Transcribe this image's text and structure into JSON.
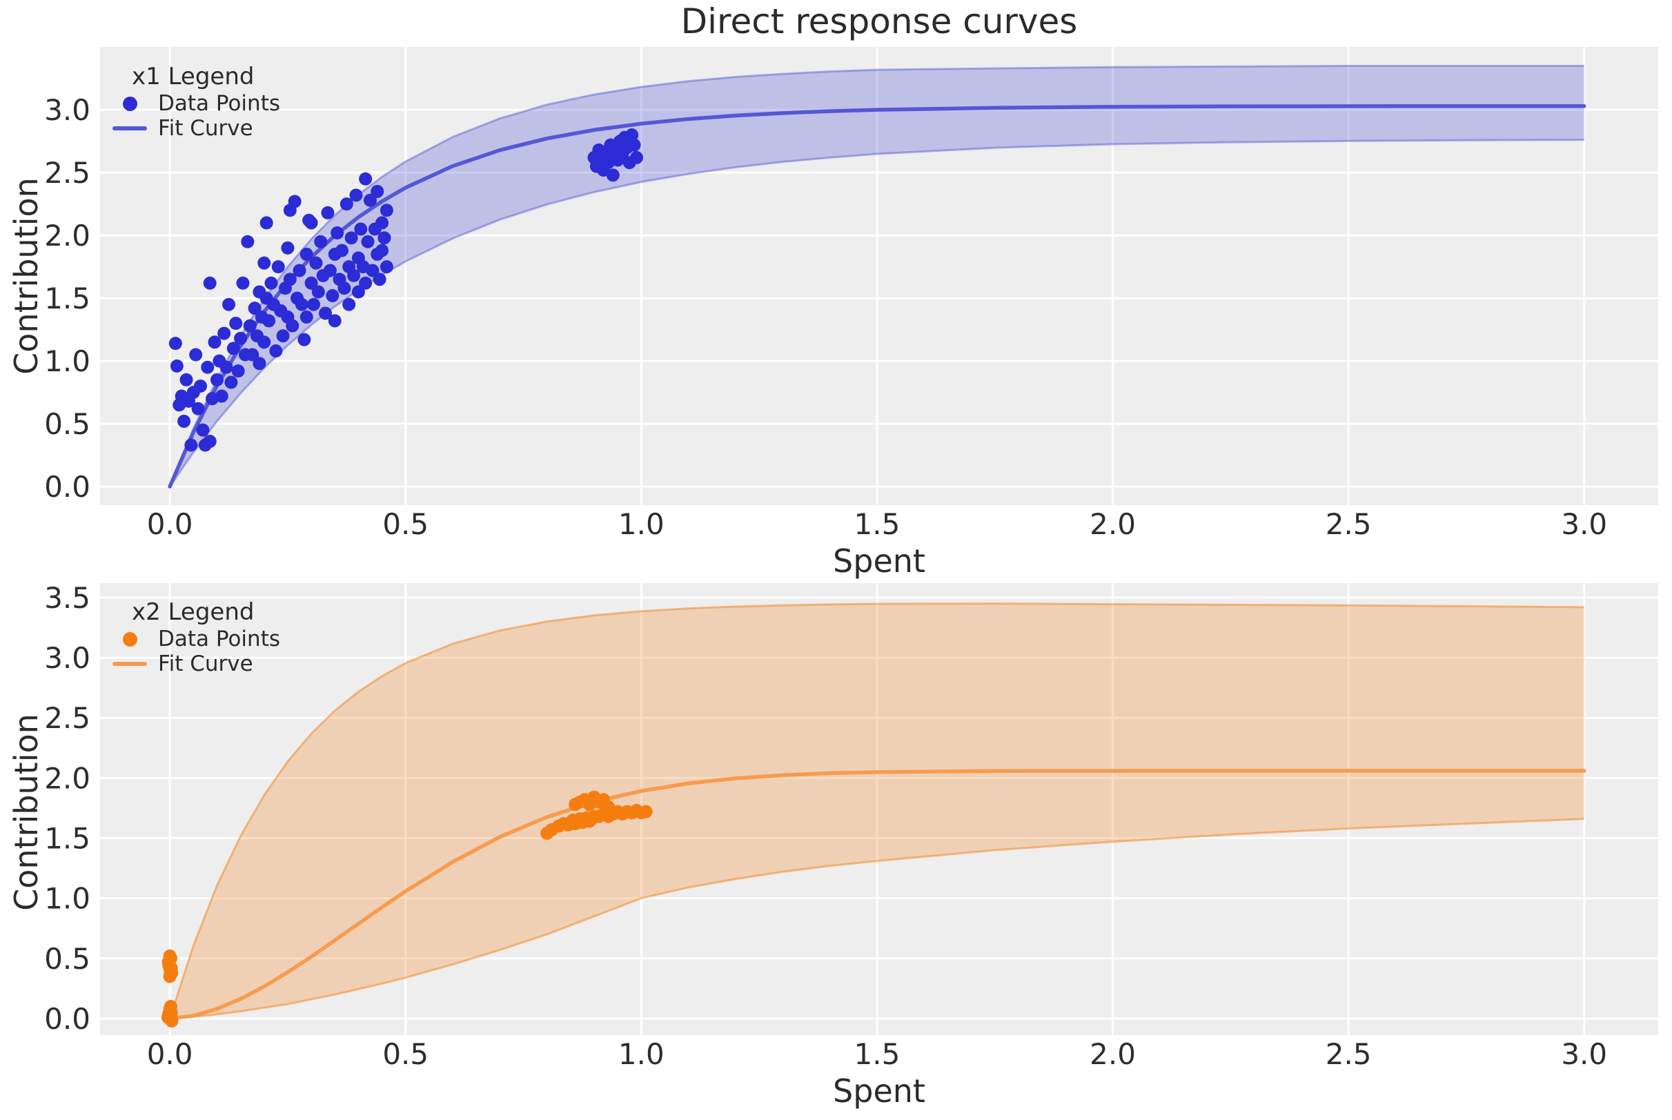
{
  "figure": {
    "title": "Direct response curves",
    "styles": {
      "background": "#ffffff",
      "plot_background": "#eeeeee",
      "grid_color": "#ffffff",
      "text_color": "#2d2d2d"
    }
  },
  "chart_data": [
    {
      "type": "scatter",
      "name": "x1",
      "xlabel": "Spent",
      "ylabel": "Contribution",
      "xlim": [
        -0.148,
        3.157
      ],
      "ylim": [
        -0.148,
        3.501
      ],
      "xticks": [
        0,
        0.5,
        1.0,
        1.5,
        2.0,
        2.5,
        3.0
      ],
      "xtick_labels": [
        "0.0",
        "0.5",
        "1.0",
        "1.5",
        "2.0",
        "2.5",
        "3.0"
      ],
      "yticks": [
        0,
        0.5,
        1.0,
        1.5,
        2.0,
        2.5,
        3.0
      ],
      "ytick_labels": [
        "0.0",
        "0.5",
        "1.0",
        "1.5",
        "2.0",
        "2.5",
        "3.0"
      ],
      "grid": true,
      "legend": {
        "title": "x1 Legend",
        "position": "upper left",
        "entries": [
          {
            "label": "Data Points",
            "type": "marker"
          },
          {
            "label": "Fit Curve",
            "type": "line"
          }
        ]
      },
      "colors": {
        "points": "#2b2cd5",
        "line": "#5457d6",
        "band_fill": "rgba(93,95,214,0.32)",
        "band_edge": "rgba(93,95,214,0.5)"
      },
      "points": [
        [
          0.012,
          1.14
        ],
        [
          0.015,
          0.96
        ],
        [
          0.02,
          0.65
        ],
        [
          0.025,
          0.72
        ],
        [
          0.03,
          0.52
        ],
        [
          0.035,
          0.85
        ],
        [
          0.04,
          0.68
        ],
        [
          0.045,
          0.33
        ],
        [
          0.05,
          0.75
        ],
        [
          0.055,
          1.05
        ],
        [
          0.06,
          0.62
        ],
        [
          0.065,
          0.8
        ],
        [
          0.07,
          0.45
        ],
        [
          0.075,
          0.33
        ],
        [
          0.085,
          0.36
        ],
        [
          0.08,
          0.95
        ],
        [
          0.085,
          1.62
        ],
        [
          0.09,
          0.7
        ],
        [
          0.095,
          1.15
        ],
        [
          0.1,
          0.85
        ],
        [
          0.105,
          1.0
        ],
        [
          0.11,
          0.72
        ],
        [
          0.115,
          1.22
        ],
        [
          0.12,
          0.95
        ],
        [
          0.125,
          1.45
        ],
        [
          0.13,
          0.83
        ],
        [
          0.135,
          1.1
        ],
        [
          0.14,
          1.3
        ],
        [
          0.145,
          0.92
        ],
        [
          0.15,
          1.18
        ],
        [
          0.155,
          1.62
        ],
        [
          0.16,
          1.05
        ],
        [
          0.165,
          1.95
        ],
        [
          0.17,
          1.28
        ],
        [
          0.175,
          1.05
        ],
        [
          0.18,
          1.42
        ],
        [
          0.185,
          1.2
        ],
        [
          0.19,
          0.98
        ],
        [
          0.19,
          1.55
        ],
        [
          0.195,
          1.35
        ],
        [
          0.2,
          1.15
        ],
        [
          0.2,
          1.78
        ],
        [
          0.205,
          2.1
        ],
        [
          0.205,
          1.5
        ],
        [
          0.21,
          1.32
        ],
        [
          0.215,
          1.62
        ],
        [
          0.22,
          1.45
        ],
        [
          0.225,
          1.08
        ],
        [
          0.23,
          1.75
        ],
        [
          0.235,
          1.4
        ],
        [
          0.24,
          1.2
        ],
        [
          0.245,
          1.58
        ],
        [
          0.25,
          1.35
        ],
        [
          0.25,
          1.9
        ],
        [
          0.255,
          2.2
        ],
        [
          0.255,
          1.65
        ],
        [
          0.26,
          1.28
        ],
        [
          0.265,
          2.27
        ],
        [
          0.27,
          1.5
        ],
        [
          0.275,
          1.72
        ],
        [
          0.28,
          1.45
        ],
        [
          0.285,
          1.17
        ],
        [
          0.29,
          1.85
        ],
        [
          0.29,
          1.35
        ],
        [
          0.295,
          2.12
        ],
        [
          0.3,
          1.62
        ],
        [
          0.3,
          2.1
        ],
        [
          0.305,
          1.45
        ],
        [
          0.31,
          1.78
        ],
        [
          0.315,
          1.55
        ],
        [
          0.32,
          1.95
        ],
        [
          0.325,
          1.68
        ],
        [
          0.33,
          1.38
        ],
        [
          0.335,
          2.18
        ],
        [
          0.34,
          1.72
        ],
        [
          0.345,
          1.52
        ],
        [
          0.35,
          1.85
        ],
        [
          0.35,
          1.32
        ],
        [
          0.355,
          2.02
        ],
        [
          0.36,
          1.65
        ],
        [
          0.365,
          1.88
        ],
        [
          0.37,
          1.58
        ],
        [
          0.375,
          2.25
        ],
        [
          0.38,
          1.75
        ],
        [
          0.38,
          1.45
        ],
        [
          0.385,
          1.98
        ],
        [
          0.39,
          1.68
        ],
        [
          0.395,
          2.32
        ],
        [
          0.4,
          1.82
        ],
        [
          0.4,
          1.55
        ],
        [
          0.405,
          2.05
        ],
        [
          0.41,
          1.75
        ],
        [
          0.415,
          2.45
        ],
        [
          0.415,
          1.62
        ],
        [
          0.42,
          1.95
        ],
        [
          0.425,
          2.28
        ],
        [
          0.43,
          1.72
        ],
        [
          0.435,
          2.05
        ],
        [
          0.44,
          1.85
        ],
        [
          0.44,
          2.35
        ],
        [
          0.445,
          1.65
        ],
        [
          0.45,
          2.1
        ],
        [
          0.45,
          1.88
        ],
        [
          0.455,
          1.98
        ],
        [
          0.46,
          1.75
        ],
        [
          0.46,
          2.2
        ],
        [
          0.9,
          2.62
        ],
        [
          0.905,
          2.55
        ],
        [
          0.91,
          2.68
        ],
        [
          0.915,
          2.6
        ],
        [
          0.92,
          2.52
        ],
        [
          0.925,
          2.65
        ],
        [
          0.93,
          2.58
        ],
        [
          0.935,
          2.72
        ],
        [
          0.94,
          2.62
        ],
        [
          0.94,
          2.48
        ],
        [
          0.945,
          2.68
        ],
        [
          0.95,
          2.6
        ],
        [
          0.955,
          2.75
        ],
        [
          0.96,
          2.65
        ],
        [
          0.965,
          2.78
        ],
        [
          0.97,
          2.7
        ],
        [
          0.975,
          2.58
        ],
        [
          0.98,
          2.8
        ],
        [
          0.985,
          2.72
        ],
        [
          0.99,
          2.62
        ]
      ],
      "fit_curve": {
        "x": [
          0,
          0.05,
          0.1,
          0.15,
          0.2,
          0.25,
          0.3,
          0.35,
          0.4,
          0.45,
          0.5,
          0.6,
          0.7,
          0.8,
          0.9,
          1.0,
          1.1,
          1.2,
          1.3,
          1.4,
          1.5,
          1.75,
          2.0,
          2.25,
          2.5,
          2.75,
          3.0
        ],
        "y": [
          0,
          0.432,
          0.803,
          1.12,
          1.393,
          1.626,
          1.826,
          1.998,
          2.145,
          2.271,
          2.38,
          2.552,
          2.679,
          2.772,
          2.84,
          2.89,
          2.927,
          2.954,
          2.974,
          2.989,
          3.0,
          3.016,
          3.024,
          3.028,
          3.029,
          3.03,
          3.03
        ]
      },
      "band": {
        "x": [
          0,
          0.05,
          0.1,
          0.15,
          0.2,
          0.25,
          0.3,
          0.35,
          0.4,
          0.45,
          0.5,
          0.6,
          0.7,
          0.8,
          0.9,
          1.0,
          1.1,
          1.2,
          1.3,
          1.4,
          1.5,
          1.75,
          2.0,
          2.25,
          2.5,
          2.75,
          3.0
        ],
        "lower": [
          0,
          0.274,
          0.521,
          0.743,
          0.944,
          1.125,
          1.287,
          1.434,
          1.566,
          1.685,
          1.793,
          1.976,
          2.126,
          2.247,
          2.345,
          2.426,
          2.49,
          2.543,
          2.586,
          2.62,
          2.649,
          2.698,
          2.727,
          2.742,
          2.752,
          2.758,
          2.761
        ],
        "upper": [
          0,
          0.46,
          0.856,
          1.199,
          1.494,
          1.749,
          1.97,
          2.16,
          2.324,
          2.466,
          2.588,
          2.784,
          2.931,
          3.041,
          3.122,
          3.182,
          3.228,
          3.262,
          3.286,
          3.305,
          3.319,
          3.33,
          3.34,
          3.345,
          3.35,
          3.35,
          3.35
        ]
      }
    },
    {
      "type": "scatter",
      "name": "x2",
      "xlabel": "Spent",
      "ylabel": "Contribution",
      "xlim": [
        -0.148,
        3.157
      ],
      "ylim": [
        -0.138,
        3.62
      ],
      "xticks": [
        0,
        0.5,
        1.0,
        1.5,
        2.0,
        2.5,
        3.0
      ],
      "xtick_labels": [
        "0.0",
        "0.5",
        "1.0",
        "1.5",
        "2.0",
        "2.5",
        "3.0"
      ],
      "yticks": [
        0,
        0.5,
        1.0,
        1.5,
        2.0,
        2.5,
        3.0,
        3.5
      ],
      "ytick_labels": [
        "0.0",
        "0.5",
        "1.0",
        "1.5",
        "2.0",
        "2.5",
        "3.0",
        "3.5"
      ],
      "grid": true,
      "legend": {
        "title": "x2 Legend",
        "position": "upper left",
        "entries": [
          {
            "label": "Data Points",
            "type": "marker"
          },
          {
            "label": "Fit Curve",
            "type": "line"
          }
        ]
      },
      "colors": {
        "points": "#f57d10",
        "line": "#f89b4e",
        "band_fill": "rgba(243,139,46,0.30)",
        "band_edge": "rgba(243,139,46,0.55)"
      },
      "points": [
        [
          0.0,
          0.35
        ],
        [
          0.003,
          0.42
        ],
        [
          -0.003,
          0.47
        ],
        [
          0.0,
          0.52
        ],
        [
          0.004,
          0.38
        ],
        [
          -0.002,
          0.44
        ],
        [
          0.002,
          0.5
        ],
        [
          0.001,
          0.4
        ],
        [
          0.0,
          0.0
        ],
        [
          0.003,
          0.05
        ],
        [
          -0.003,
          0.02
        ],
        [
          0.0,
          0.08
        ],
        [
          0.004,
          -0.02
        ],
        [
          -0.002,
          0.04
        ],
        [
          0.002,
          0.1
        ],
        [
          0.001,
          0.06
        ],
        [
          -0.004,
          0.01
        ],
        [
          0.002,
          0.03
        ],
        [
          0.8,
          1.54
        ],
        [
          0.81,
          1.57
        ],
        [
          0.825,
          1.6
        ],
        [
          0.835,
          1.62
        ],
        [
          0.845,
          1.61
        ],
        [
          0.85,
          1.63
        ],
        [
          0.855,
          1.65
        ],
        [
          0.86,
          1.62
        ],
        [
          0.865,
          1.64
        ],
        [
          0.87,
          1.66
        ],
        [
          0.875,
          1.63
        ],
        [
          0.88,
          1.65
        ],
        [
          0.885,
          1.67
        ],
        [
          0.89,
          1.64
        ],
        [
          0.895,
          1.66
        ],
        [
          0.9,
          1.68
        ],
        [
          0.86,
          1.78
        ],
        [
          0.87,
          1.8
        ],
        [
          0.88,
          1.82
        ],
        [
          0.89,
          1.78
        ],
        [
          0.9,
          1.84
        ],
        [
          0.91,
          1.8
        ],
        [
          0.92,
          1.82
        ],
        [
          0.93,
          1.76
        ],
        [
          0.91,
          1.68
        ],
        [
          0.92,
          1.7
        ],
        [
          0.93,
          1.68
        ],
        [
          0.94,
          1.7
        ],
        [
          0.95,
          1.72
        ],
        [
          0.96,
          1.7
        ],
        [
          0.97,
          1.72
        ],
        [
          0.98,
          1.71
        ],
        [
          0.99,
          1.73
        ],
        [
          1.0,
          1.71
        ],
        [
          1.01,
          1.72
        ]
      ],
      "fit_curve": {
        "x": [
          0,
          0.05,
          0.1,
          0.15,
          0.2,
          0.25,
          0.3,
          0.35,
          0.4,
          0.45,
          0.5,
          0.6,
          0.7,
          0.8,
          0.9,
          1.0,
          1.1,
          1.2,
          1.3,
          1.4,
          1.5,
          1.75,
          2.0,
          2.25,
          2.5,
          2.75,
          3.0
        ],
        "y": [
          0,
          0.023,
          0.08,
          0.163,
          0.266,
          0.385,
          0.514,
          0.65,
          0.788,
          0.925,
          1.058,
          1.302,
          1.51,
          1.675,
          1.802,
          1.892,
          1.955,
          1.997,
          2.023,
          2.04,
          2.049,
          2.058,
          2.059,
          2.06,
          2.06,
          2.06,
          2.06
        ]
      },
      "band": {
        "x": [
          0,
          0.05,
          0.1,
          0.15,
          0.2,
          0.25,
          0.3,
          0.35,
          0.4,
          0.45,
          0.5,
          0.6,
          0.7,
          0.8,
          0.9,
          1.0,
          1.1,
          1.2,
          1.3,
          1.4,
          1.5,
          1.75,
          2.0,
          2.25,
          2.5,
          2.75,
          3.0
        ],
        "lower": [
          0,
          0.015,
          0.035,
          0.06,
          0.09,
          0.12,
          0.16,
          0.2,
          0.245,
          0.29,
          0.34,
          0.45,
          0.57,
          0.7,
          0.85,
          1.0,
          1.09,
          1.16,
          1.22,
          1.27,
          1.31,
          1.4,
          1.47,
          1.53,
          1.58,
          1.62,
          1.66
        ],
        "upper": [
          0,
          0.605,
          1.105,
          1.517,
          1.857,
          2.137,
          2.368,
          2.56,
          2.717,
          2.847,
          2.955,
          3.116,
          3.226,
          3.301,
          3.352,
          3.386,
          3.41,
          3.425,
          3.435,
          3.443,
          3.448,
          3.45,
          3.445,
          3.44,
          3.435,
          3.428,
          3.42
        ]
      }
    }
  ]
}
